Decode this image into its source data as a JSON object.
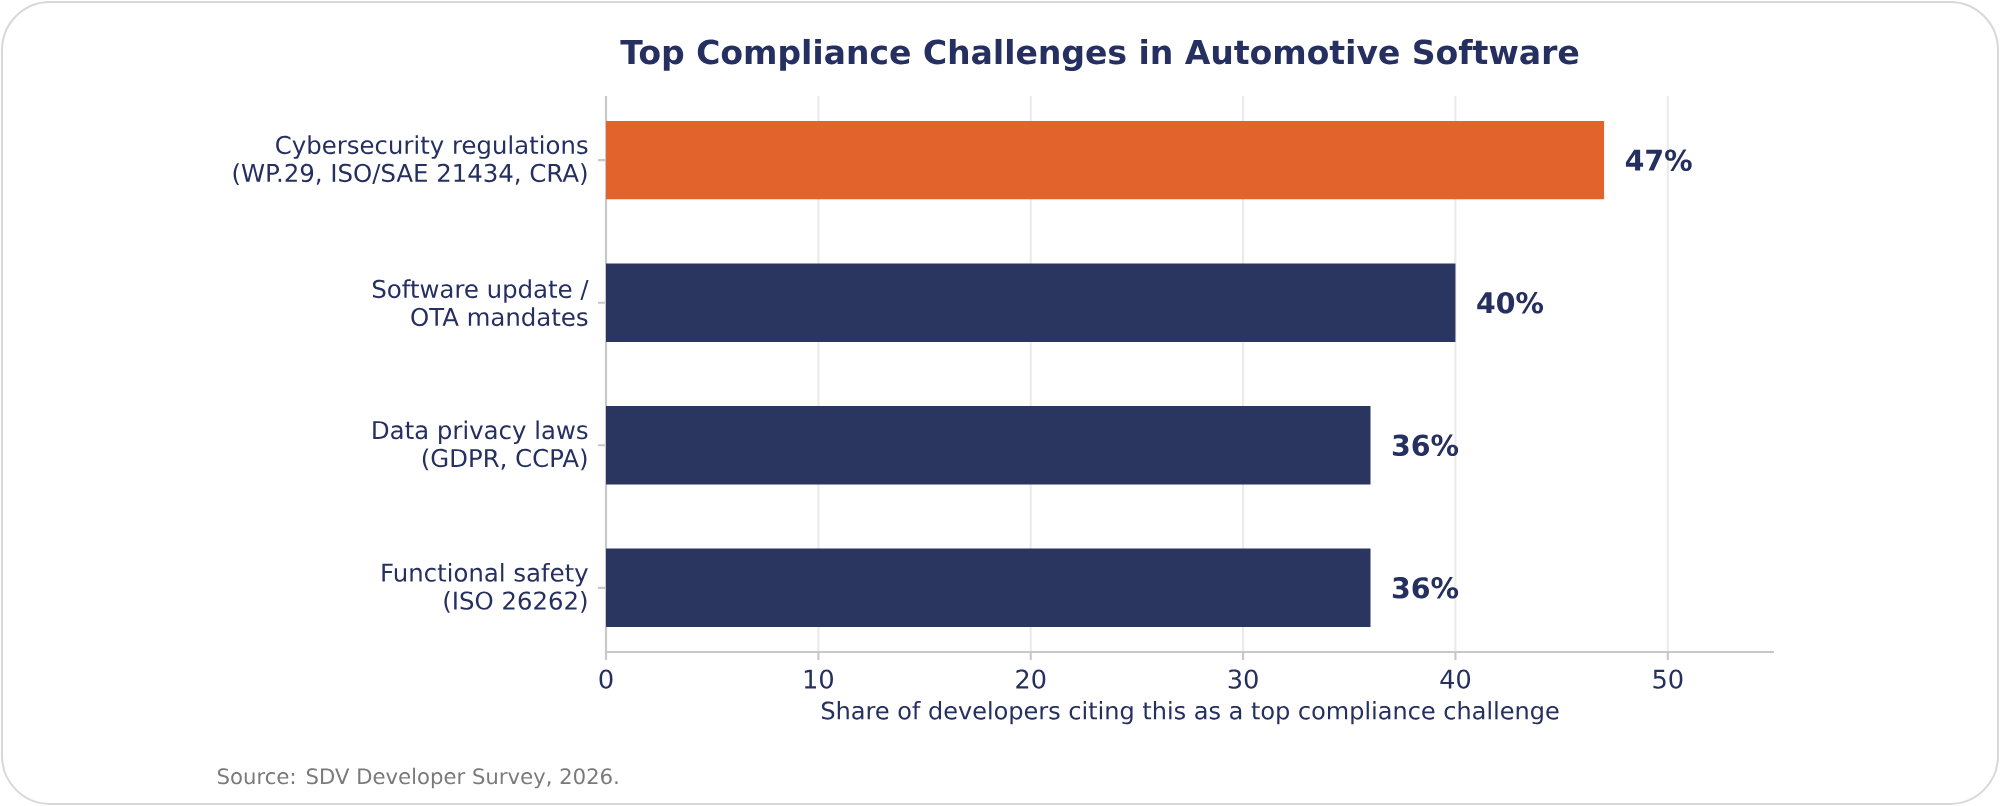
{
  "chart_data": {
    "type": "bar",
    "orientation": "horizontal",
    "title": "Top Compliance Challenges in Automotive Software",
    "xlabel": "Share of developers citing this as a top compliance challenge",
    "categories": [
      "Cybersecurity regulations\n(WP.29, ISO/SAE 21434, CRA)",
      "Software update /\nOTA mandates",
      "Data privacy laws\n(GDPR, CCPA)",
      "Functional safety\n(ISO 26262)"
    ],
    "values": [
      47,
      40,
      36,
      36
    ],
    "colors": [
      "#e2642c",
      "#2a3560",
      "#2a3560",
      "#2a3560"
    ],
    "value_labels": [
      "47%",
      "40%",
      "36%",
      "36%"
    ],
    "xlim": [
      0,
      55
    ],
    "xticks": [
      0,
      10,
      20,
      30,
      40,
      50
    ],
    "grid": "x",
    "annotations": [
      "Source: SDV Developer Survey, 2026."
    ]
  }
}
